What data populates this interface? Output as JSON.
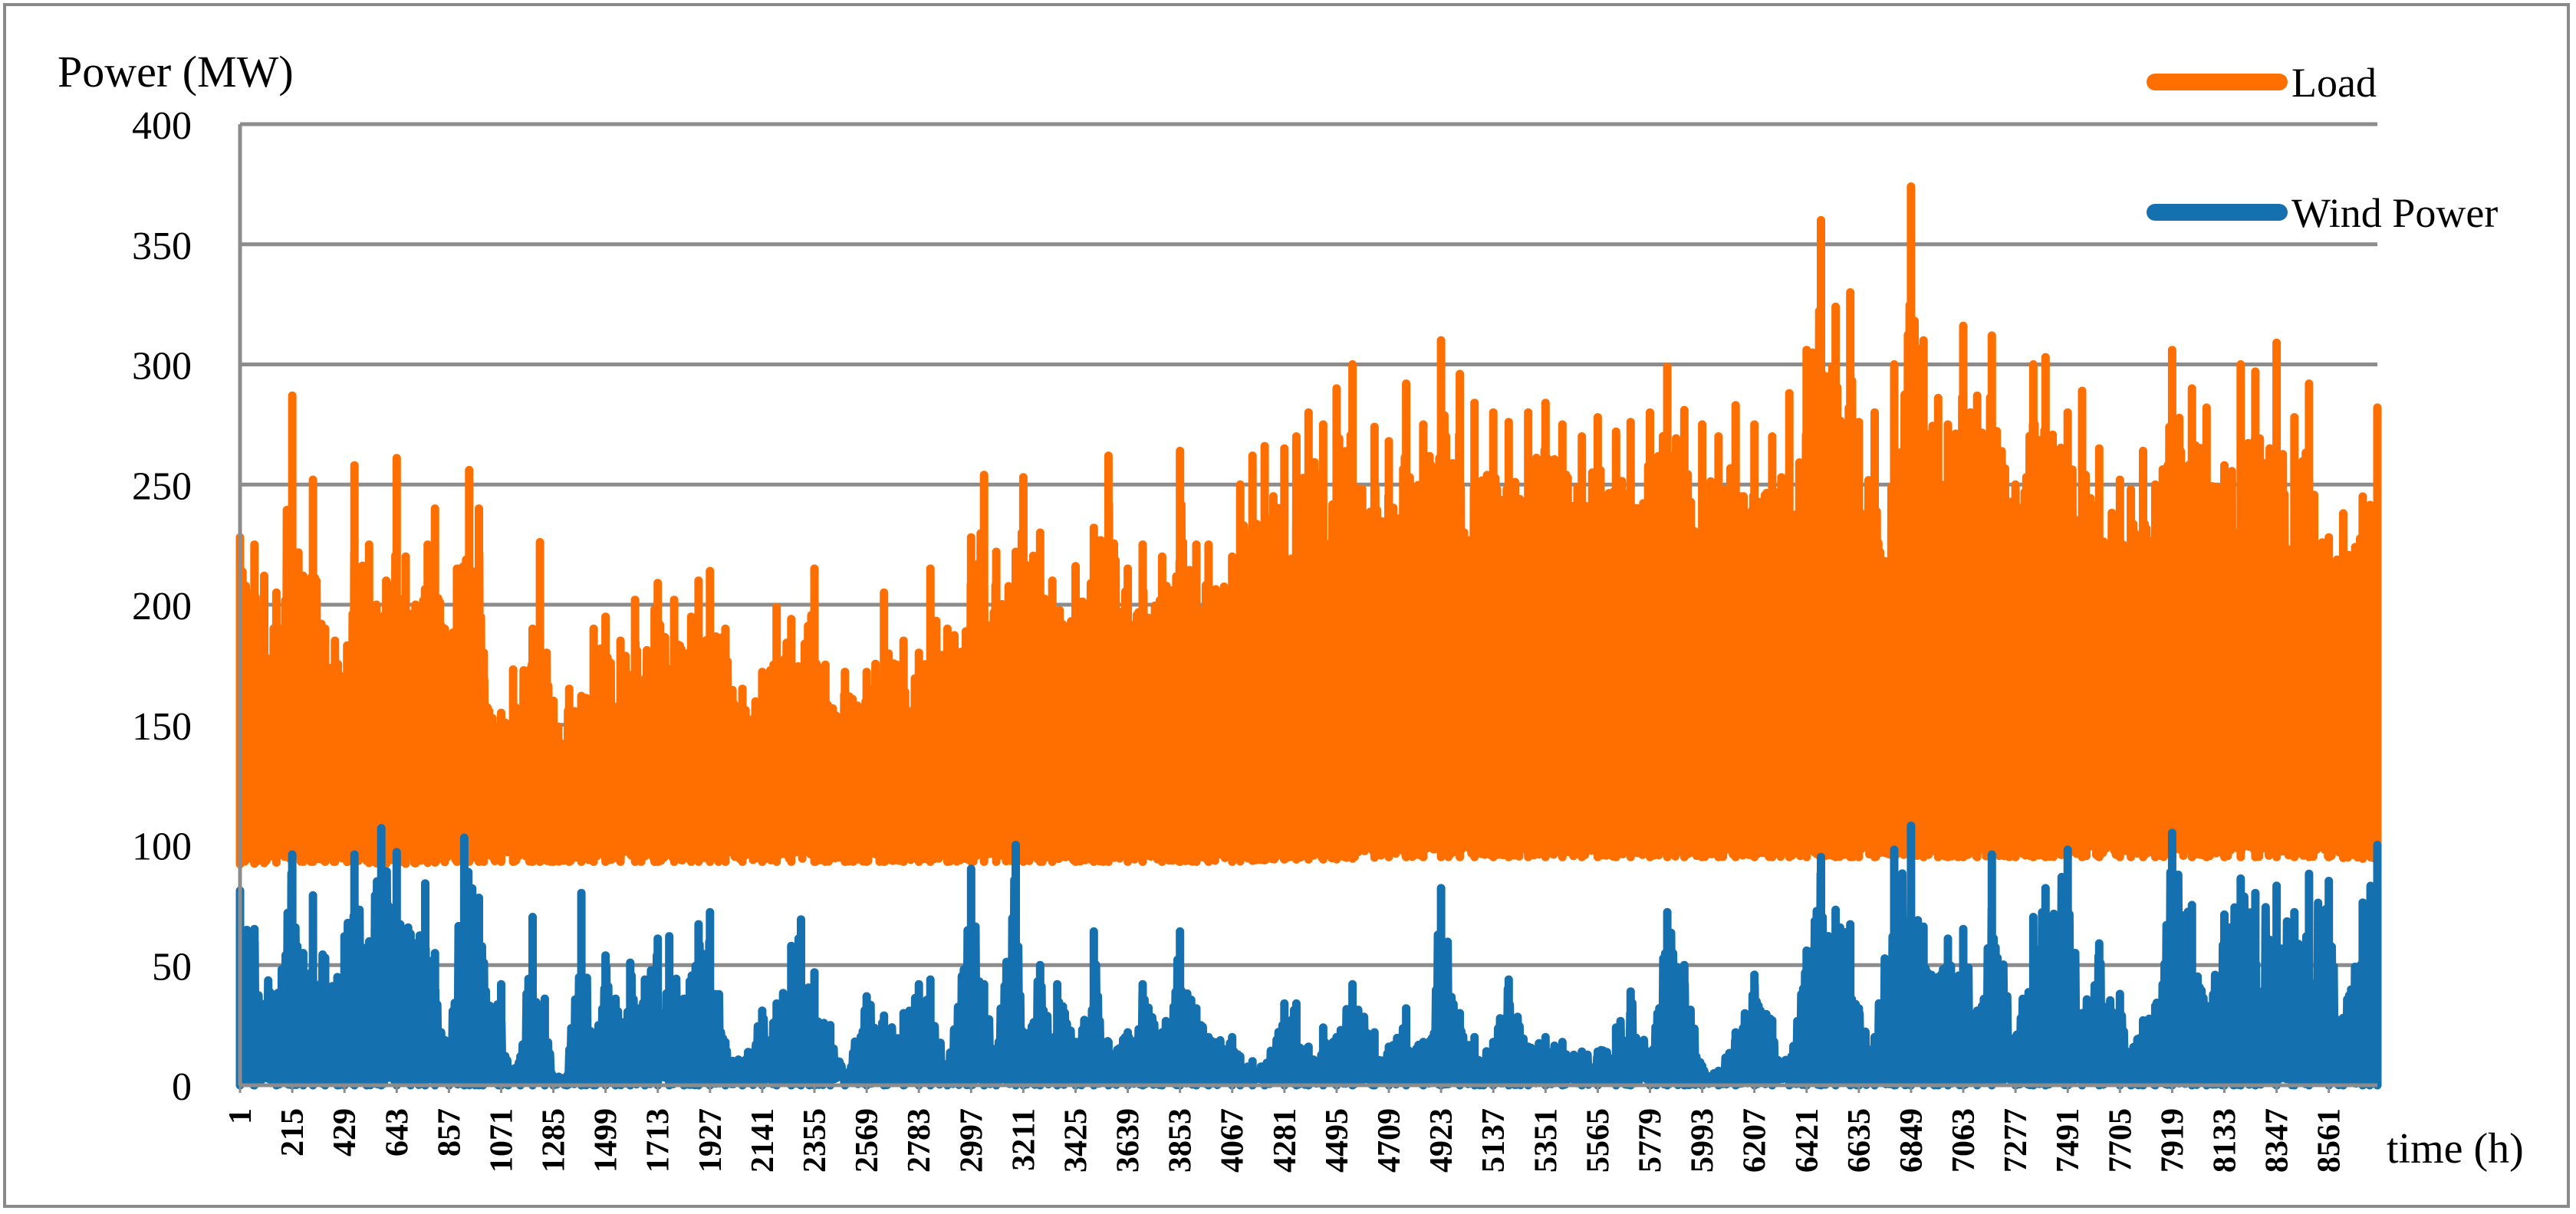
{
  "chart_data": {
    "type": "line",
    "ylabel": "Power (MW)",
    "xlabel": "time (h)",
    "ylim": [
      0,
      400
    ],
    "yticks": [
      0,
      50,
      100,
      150,
      200,
      250,
      300,
      350,
      400
    ],
    "x_range": [
      1,
      8760
    ],
    "xticks": [
      1,
      215,
      429,
      643,
      857,
      1071,
      1285,
      1499,
      1713,
      1927,
      2141,
      2355,
      2569,
      2783,
      2997,
      3211,
      3425,
      3639,
      3853,
      4067,
      4281,
      4495,
      4709,
      4923,
      5137,
      5351,
      5565,
      5779,
      5993,
      6207,
      6421,
      6635,
      6849,
      7063,
      7277,
      7491,
      7705,
      7919,
      8133,
      8347,
      8561
    ],
    "grid": "horizontal",
    "legend_position": "top-right",
    "series": [
      {
        "name": "Load",
        "color": "#FF6F00",
        "base": [
          92,
          93,
          93,
          92,
          93,
          93,
          93,
          93,
          93,
          93,
          93,
          93,
          93,
          93,
          93,
          93,
          93,
          93,
          93,
          93,
          94,
          94,
          95,
          95,
          95,
          95,
          95,
          95,
          95,
          95,
          95,
          95,
          95,
          95,
          95,
          95,
          95,
          95,
          95,
          95,
          95,
          94
        ],
        "peaks": [
          [
            1,
            228
          ],
          [
            60,
            225
          ],
          [
            100,
            212
          ],
          [
            150,
            205
          ],
          [
            215,
            287
          ],
          [
            260,
            212
          ],
          [
            300,
            252
          ],
          [
            350,
            190
          ],
          [
            390,
            185
          ],
          [
            440,
            183
          ],
          [
            470,
            258
          ],
          [
            530,
            225
          ],
          [
            560,
            200
          ],
          [
            600,
            210
          ],
          [
            643,
            261
          ],
          [
            680,
            220
          ],
          [
            720,
            200
          ],
          [
            770,
            225
          ],
          [
            800,
            240
          ],
          [
            840,
            190
          ],
          [
            890,
            215
          ],
          [
            940,
            256
          ],
          [
            980,
            240
          ],
          [
            1000,
            180
          ],
          [
            1071,
            155
          ],
          [
            1120,
            173
          ],
          [
            1200,
            190
          ],
          [
            1230,
            226
          ],
          [
            1285,
            160
          ],
          [
            1350,
            165
          ],
          [
            1400,
            162
          ],
          [
            1450,
            190
          ],
          [
            1499,
            195
          ],
          [
            1560,
            185
          ],
          [
            1620,
            202
          ],
          [
            1700,
            198
          ],
          [
            1713,
            209
          ],
          [
            1780,
            202
          ],
          [
            1850,
            195
          ],
          [
            1880,
            210
          ],
          [
            1927,
            214
          ],
          [
            1990,
            190
          ],
          [
            2060,
            165
          ],
          [
            2141,
            172
          ],
          [
            2200,
            199
          ],
          [
            2260,
            194
          ],
          [
            2355,
            215
          ],
          [
            2400,
            175
          ],
          [
            2480,
            172
          ],
          [
            2569,
            172
          ],
          [
            2640,
            205
          ],
          [
            2720,
            185
          ],
          [
            2783,
            180
          ],
          [
            2830,
            215
          ],
          [
            2900,
            190
          ],
          [
            2997,
            228
          ],
          [
            3050,
            254
          ],
          [
            3100,
            222
          ],
          [
            3180,
            222
          ],
          [
            3211,
            253
          ],
          [
            3280,
            230
          ],
          [
            3330,
            210
          ],
          [
            3425,
            216
          ],
          [
            3500,
            232
          ],
          [
            3560,
            262
          ],
          [
            3639,
            215
          ],
          [
            3700,
            225
          ],
          [
            3780,
            220
          ],
          [
            3853,
            264
          ],
          [
            3920,
            225
          ],
          [
            3970,
            225
          ],
          [
            4067,
            220
          ],
          [
            4100,
            250
          ],
          [
            4150,
            262
          ],
          [
            4200,
            266
          ],
          [
            4281,
            265
          ],
          [
            4330,
            270
          ],
          [
            4380,
            280
          ],
          [
            4440,
            275
          ],
          [
            4495,
            290
          ],
          [
            4560,
            300
          ],
          [
            4650,
            274
          ],
          [
            4709,
            268
          ],
          [
            4780,
            292
          ],
          [
            4850,
            275
          ],
          [
            4923,
            310
          ],
          [
            5000,
            296
          ],
          [
            5060,
            284
          ],
          [
            5137,
            280
          ],
          [
            5200,
            276
          ],
          [
            5280,
            280
          ],
          [
            5351,
            284
          ],
          [
            5420,
            275
          ],
          [
            5500,
            270
          ],
          [
            5565,
            278
          ],
          [
            5640,
            272
          ],
          [
            5700,
            276
          ],
          [
            5779,
            280
          ],
          [
            5850,
            299
          ],
          [
            5920,
            281
          ],
          [
            5993,
            275
          ],
          [
            6060,
            270
          ],
          [
            6130,
            283
          ],
          [
            6207,
            275
          ],
          [
            6280,
            270
          ],
          [
            6350,
            288
          ],
          [
            6421,
            306
          ],
          [
            6480,
            360
          ],
          [
            6540,
            324
          ],
          [
            6600,
            330
          ],
          [
            6635,
            276
          ],
          [
            6700,
            280
          ],
          [
            6780,
            300
          ],
          [
            6849,
            374
          ],
          [
            6900,
            310
          ],
          [
            6960,
            286
          ],
          [
            7000,
            275
          ],
          [
            7063,
            316
          ],
          [
            7120,
            287
          ],
          [
            7180,
            312
          ],
          [
            7277,
            250
          ],
          [
            7350,
            300
          ],
          [
            7400,
            303
          ],
          [
            7491,
            280
          ],
          [
            7550,
            289
          ],
          [
            7620,
            265
          ],
          [
            7705,
            252
          ],
          [
            7750,
            248
          ],
          [
            7800,
            264
          ],
          [
            7850,
            250
          ],
          [
            7919,
            306
          ],
          [
            8000,
            290
          ],
          [
            8060,
            282
          ],
          [
            8133,
            258
          ],
          [
            8200,
            300
          ],
          [
            8260,
            297
          ],
          [
            8347,
            309
          ],
          [
            8420,
            278
          ],
          [
            8480,
            292
          ],
          [
            8561,
            228
          ],
          [
            8620,
            238
          ],
          [
            8700,
            245
          ],
          [
            8760,
            282
          ]
        ]
      },
      {
        "name": "Wind Power",
        "color": "#1570B0",
        "peaks": [
          [
            1,
            81
          ],
          [
            60,
            65
          ],
          [
            150,
            37
          ],
          [
            215,
            96
          ],
          [
            260,
            55
          ],
          [
            300,
            79
          ],
          [
            350,
            53
          ],
          [
            400,
            45
          ],
          [
            429,
            62
          ],
          [
            470,
            96
          ],
          [
            520,
            55
          ],
          [
            580,
            107
          ],
          [
            643,
            97
          ],
          [
            700,
            63
          ],
          [
            760,
            84
          ],
          [
            800,
            55
          ],
          [
            857,
            15
          ],
          [
            920,
            103
          ],
          [
            980,
            78
          ],
          [
            1071,
            42
          ],
          [
            1100,
            6
          ],
          [
            1150,
            12
          ],
          [
            1200,
            70
          ],
          [
            1250,
            36
          ],
          [
            1285,
            3
          ],
          [
            1340,
            2
          ],
          [
            1400,
            80
          ],
          [
            1450,
            20
          ],
          [
            1499,
            54
          ],
          [
            1540,
            36
          ],
          [
            1600,
            51
          ],
          [
            1660,
            44
          ],
          [
            1713,
            61
          ],
          [
            1760,
            62
          ],
          [
            1820,
            36
          ],
          [
            1880,
            67
          ],
          [
            1927,
            72
          ],
          [
            1990,
            18
          ],
          [
            2060,
            10
          ],
          [
            2141,
            31
          ],
          [
            2200,
            34
          ],
          [
            2260,
            58
          ],
          [
            2300,
            69
          ],
          [
            2355,
            47
          ],
          [
            2420,
            25
          ],
          [
            2480,
            5
          ],
          [
            2569,
            37
          ],
          [
            2640,
            29
          ],
          [
            2720,
            30
          ],
          [
            2783,
            42
          ],
          [
            2830,
            44
          ],
          [
            2900,
            5
          ],
          [
            2997,
            90
          ],
          [
            3050,
            42
          ],
          [
            3100,
            15
          ],
          [
            3180,
            100
          ],
          [
            3211,
            20
          ],
          [
            3280,
            50
          ],
          [
            3350,
            42
          ],
          [
            3425,
            18
          ],
          [
            3500,
            64
          ],
          [
            3560,
            18
          ],
          [
            3639,
            22
          ],
          [
            3700,
            42
          ],
          [
            3780,
            22
          ],
          [
            3853,
            64
          ],
          [
            3920,
            32
          ],
          [
            3970,
            20
          ],
          [
            4067,
            20
          ],
          [
            4100,
            12
          ],
          [
            4150,
            10
          ],
          [
            4200,
            8
          ],
          [
            4281,
            34
          ],
          [
            4330,
            34
          ],
          [
            4380,
            16
          ],
          [
            4440,
            24
          ],
          [
            4495,
            20
          ],
          [
            4560,
            42
          ],
          [
            4650,
            22
          ],
          [
            4709,
            16
          ],
          [
            4780,
            32
          ],
          [
            4850,
            18
          ],
          [
            4923,
            82
          ],
          [
            5000,
            30
          ],
          [
            5060,
            20
          ],
          [
            5137,
            18
          ],
          [
            5200,
            44
          ],
          [
            5280,
            16
          ],
          [
            5351,
            20
          ],
          [
            5420,
            18
          ],
          [
            5500,
            14
          ],
          [
            5565,
            14
          ],
          [
            5640,
            24
          ],
          [
            5700,
            39
          ],
          [
            5779,
            14
          ],
          [
            5850,
            72
          ],
          [
            5920,
            50
          ],
          [
            5993,
            8
          ],
          [
            6060,
            6
          ],
          [
            6130,
            22
          ],
          [
            6207,
            46
          ],
          [
            6280,
            27
          ],
          [
            6350,
            8
          ],
          [
            6421,
            56
          ],
          [
            6480,
            95
          ],
          [
            6540,
            73
          ],
          [
            6600,
            67
          ],
          [
            6635,
            32
          ],
          [
            6700,
            20
          ],
          [
            6780,
            98
          ],
          [
            6849,
            108
          ],
          [
            6900,
            66
          ],
          [
            6960,
            45
          ],
          [
            7000,
            61
          ],
          [
            7063,
            65
          ],
          [
            7120,
            31
          ],
          [
            7180,
            96
          ],
          [
            7277,
            20
          ],
          [
            7350,
            70
          ],
          [
            7400,
            82
          ],
          [
            7491,
            98
          ],
          [
            7550,
            30
          ],
          [
            7620,
            59
          ],
          [
            7705,
            38
          ],
          [
            7750,
            14
          ],
          [
            7800,
            27
          ],
          [
            7850,
            33
          ],
          [
            7919,
            105
          ],
          [
            8000,
            75
          ],
          [
            8060,
            33
          ],
          [
            8133,
            71
          ],
          [
            8200,
            86
          ],
          [
            8260,
            80
          ],
          [
            8347,
            83
          ],
          [
            8420,
            72
          ],
          [
            8480,
            88
          ],
          [
            8561,
            85
          ],
          [
            8620,
            28
          ],
          [
            8700,
            76
          ],
          [
            8760,
            100
          ]
        ]
      }
    ]
  }
}
